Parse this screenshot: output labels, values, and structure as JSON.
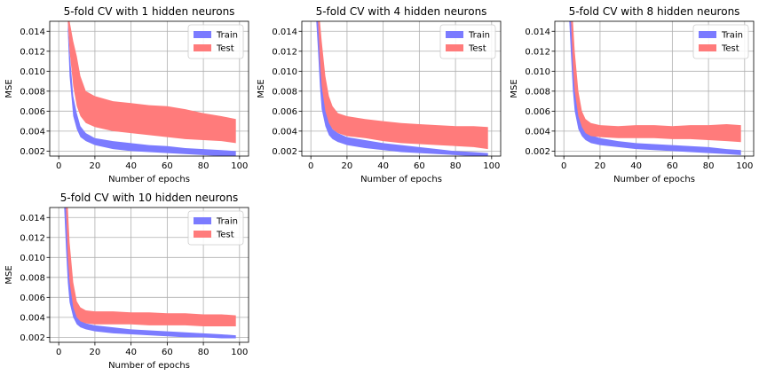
{
  "colors": {
    "train": "#7b7bff",
    "test": "#ff7b7b",
    "grid": "#b0b0b0"
  },
  "chart_data": [
    {
      "type": "area",
      "title": "5-fold CV with 1 hidden neurons",
      "xlabel": "Number of epochs",
      "ylabel": "MSE",
      "xlim": [
        -5,
        105
      ],
      "ylim": [
        0.0015,
        0.015
      ],
      "xticks": [
        "0",
        "20",
        "40",
        "60",
        "80",
        "100"
      ],
      "yticks": [
        "0.002",
        "0.004",
        "0.006",
        "0.008",
        "0.010",
        "0.012",
        "0.014"
      ],
      "grid": true,
      "legend": "top-right",
      "series": [
        {
          "name": "Train",
          "x": [
            5,
            6,
            8,
            10,
            12,
            15,
            20,
            30,
            40,
            50,
            60,
            70,
            80,
            90,
            98
          ],
          "lower": [
            0.014,
            0.0095,
            0.0055,
            0.0042,
            0.0034,
            0.003,
            0.0026,
            0.0022,
            0.002,
            0.0019,
            0.0018,
            0.0017,
            0.0016,
            0.0015,
            0.0015
          ],
          "upper": [
            0.015,
            0.012,
            0.0075,
            0.0058,
            0.0045,
            0.0038,
            0.0033,
            0.003,
            0.0028,
            0.0026,
            0.0025,
            0.0023,
            0.0022,
            0.0021,
            0.002
          ]
        },
        {
          "name": "Test",
          "x": [
            5,
            6,
            8,
            10,
            12,
            15,
            20,
            30,
            40,
            50,
            60,
            70,
            80,
            90,
            98
          ],
          "lower": [
            0.015,
            0.012,
            0.0085,
            0.0065,
            0.0055,
            0.0048,
            0.0044,
            0.004,
            0.0038,
            0.0036,
            0.0034,
            0.0032,
            0.0031,
            0.003,
            0.0028
          ],
          "upper": [
            0.015,
            0.015,
            0.013,
            0.0115,
            0.0095,
            0.008,
            0.0075,
            0.007,
            0.0068,
            0.0066,
            0.0065,
            0.0062,
            0.0058,
            0.0055,
            0.0052
          ]
        }
      ]
    },
    {
      "type": "area",
      "title": "5-fold CV with 4 hidden neurons",
      "xlabel": "Number of epochs",
      "ylabel": "MSE",
      "xlim": [
        -5,
        105
      ],
      "ylim": [
        0.0015,
        0.015
      ],
      "xticks": [
        "0",
        "20",
        "40",
        "60",
        "80",
        "100"
      ],
      "yticks": [
        "0.002",
        "0.004",
        "0.006",
        "0.008",
        "0.010",
        "0.012",
        "0.014"
      ],
      "grid": true,
      "legend": "top-right",
      "series": [
        {
          "name": "Train",
          "x": [
            3,
            4,
            5,
            6,
            8,
            10,
            12,
            15,
            20,
            30,
            40,
            50,
            60,
            70,
            80,
            90,
            98
          ],
          "lower": [
            0.015,
            0.012,
            0.0085,
            0.0062,
            0.0045,
            0.0036,
            0.0032,
            0.0029,
            0.0026,
            0.0023,
            0.0021,
            0.0019,
            0.0018,
            0.0017,
            0.0016,
            0.0015,
            0.0015
          ],
          "upper": [
            0.015,
            0.015,
            0.012,
            0.009,
            0.0065,
            0.005,
            0.0042,
            0.0038,
            0.0034,
            0.0031,
            0.0028,
            0.0026,
            0.0024,
            0.0022,
            0.002,
            0.0019,
            0.0018
          ]
        },
        {
          "name": "Test",
          "x": [
            3,
            4,
            5,
            6,
            8,
            10,
            12,
            15,
            20,
            30,
            40,
            50,
            60,
            70,
            80,
            90,
            98
          ],
          "lower": [
            0.015,
            0.015,
            0.011,
            0.0085,
            0.006,
            0.0048,
            0.0042,
            0.0038,
            0.0035,
            0.0033,
            0.003,
            0.0028,
            0.0027,
            0.0026,
            0.0025,
            0.0024,
            0.0022
          ],
          "upper": [
            0.015,
            0.015,
            0.015,
            0.013,
            0.0095,
            0.0075,
            0.0065,
            0.0058,
            0.0055,
            0.0052,
            0.005,
            0.0048,
            0.0047,
            0.0046,
            0.0045,
            0.0045,
            0.0044
          ]
        }
      ]
    },
    {
      "type": "area",
      "title": "5-fold CV with 8 hidden neurons",
      "xlabel": "Number of epochs",
      "ylabel": "MSE",
      "xlim": [
        -5,
        105
      ],
      "ylim": [
        0.0015,
        0.015
      ],
      "xticks": [
        "0",
        "20",
        "40",
        "60",
        "80",
        "100"
      ],
      "yticks": [
        "0.002",
        "0.004",
        "0.006",
        "0.008",
        "0.010",
        "0.012",
        "0.014"
      ],
      "grid": true,
      "legend": "top-right",
      "series": [
        {
          "name": "Train",
          "x": [
            3,
            4,
            5,
            6,
            8,
            10,
            12,
            15,
            20,
            30,
            40,
            50,
            60,
            70,
            80,
            90,
            98
          ],
          "lower": [
            0.015,
            0.0115,
            0.008,
            0.006,
            0.0042,
            0.0035,
            0.0031,
            0.0028,
            0.0026,
            0.0024,
            0.0022,
            0.0021,
            0.002,
            0.0019,
            0.0018,
            0.0017,
            0.0016
          ],
          "upper": [
            0.015,
            0.015,
            0.0115,
            0.0085,
            0.006,
            0.0046,
            0.004,
            0.0036,
            0.0033,
            0.003,
            0.0028,
            0.0027,
            0.0026,
            0.0025,
            0.0024,
            0.0022,
            0.0021
          ]
        },
        {
          "name": "Test",
          "x": [
            3,
            4,
            5,
            6,
            8,
            10,
            12,
            15,
            20,
            30,
            40,
            50,
            60,
            70,
            80,
            90,
            98
          ],
          "lower": [
            0.015,
            0.015,
            0.0105,
            0.008,
            0.0055,
            0.0044,
            0.0038,
            0.0035,
            0.0034,
            0.0033,
            0.0033,
            0.0033,
            0.0032,
            0.0032,
            0.0031,
            0.003,
            0.0029
          ],
          "upper": [
            0.015,
            0.015,
            0.015,
            0.012,
            0.008,
            0.006,
            0.0052,
            0.0048,
            0.0046,
            0.0045,
            0.0046,
            0.0046,
            0.0045,
            0.0046,
            0.0046,
            0.0047,
            0.0046
          ]
        }
      ]
    },
    {
      "type": "area",
      "title": "5-fold CV with 10 hidden neurons",
      "xlabel": "Number of epochs",
      "ylabel": "MSE",
      "xlim": [
        -5,
        105
      ],
      "ylim": [
        0.0015,
        0.015
      ],
      "xticks": [
        "0",
        "20",
        "40",
        "60",
        "80",
        "100"
      ],
      "yticks": [
        "0.002",
        "0.004",
        "0.006",
        "0.008",
        "0.010",
        "0.012",
        "0.014"
      ],
      "grid": true,
      "legend": "top-right",
      "series": [
        {
          "name": "Train",
          "x": [
            3,
            4,
            5,
            6,
            8,
            10,
            12,
            15,
            20,
            30,
            40,
            50,
            60,
            70,
            80,
            90,
            98
          ],
          "lower": [
            0.015,
            0.011,
            0.0075,
            0.0055,
            0.004,
            0.0033,
            0.003,
            0.0028,
            0.0026,
            0.0024,
            0.0023,
            0.0022,
            0.0021,
            0.002,
            0.002,
            0.0019,
            0.0019
          ],
          "upper": [
            0.015,
            0.015,
            0.011,
            0.0078,
            0.0055,
            0.0045,
            0.0038,
            0.0034,
            0.0032,
            0.003,
            0.0028,
            0.0027,
            0.0026,
            0.0025,
            0.0024,
            0.0023,
            0.0022
          ]
        },
        {
          "name": "Test",
          "x": [
            3,
            4,
            5,
            6,
            8,
            10,
            12,
            15,
            20,
            30,
            40,
            50,
            60,
            70,
            80,
            90,
            98
          ],
          "lower": [
            0.015,
            0.015,
            0.01,
            0.0075,
            0.005,
            0.004,
            0.0036,
            0.0034,
            0.0033,
            0.0033,
            0.0033,
            0.0032,
            0.0032,
            0.0032,
            0.0031,
            0.0031,
            0.0031
          ],
          "upper": [
            0.015,
            0.015,
            0.015,
            0.0115,
            0.0075,
            0.0056,
            0.005,
            0.0047,
            0.0046,
            0.0046,
            0.0045,
            0.0045,
            0.0044,
            0.0044,
            0.0043,
            0.0043,
            0.0042
          ]
        }
      ]
    }
  ]
}
